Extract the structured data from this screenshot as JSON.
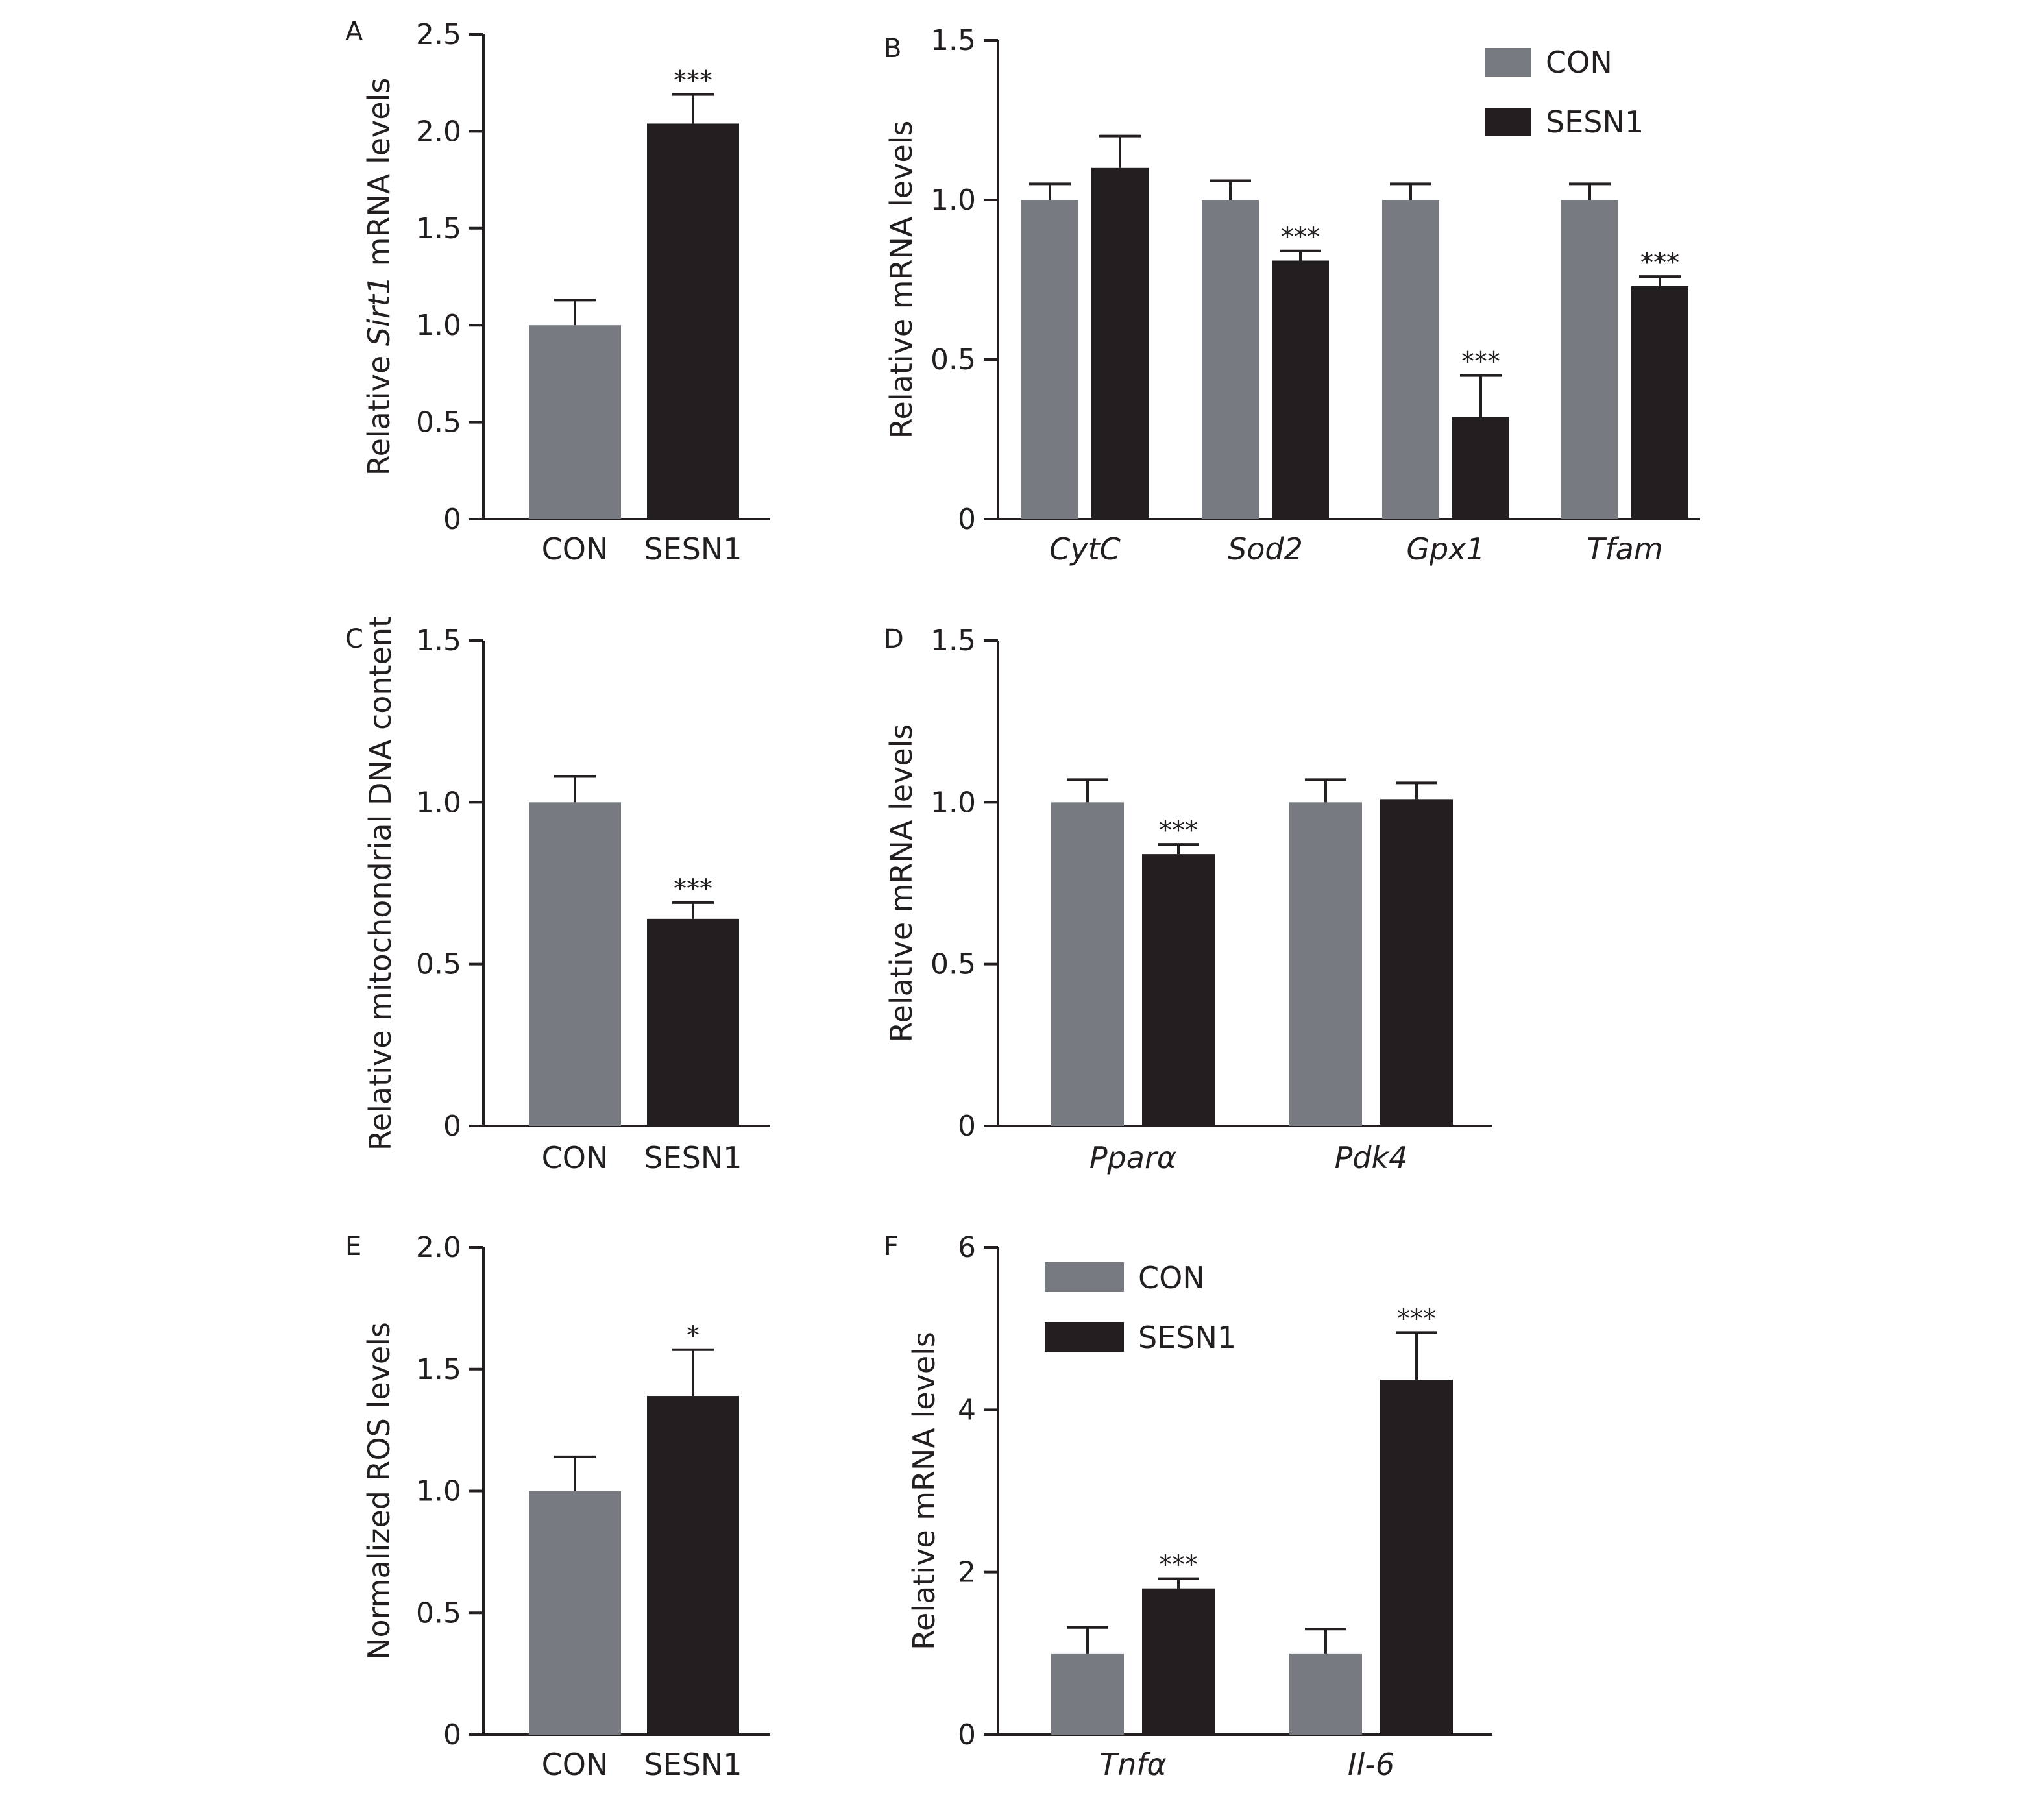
{
  "colors": {
    "con": "#777a80",
    "sesn1": "#231f20",
    "axis": "#231f20"
  },
  "chart_data": [
    {
      "panel": "A",
      "type": "bar",
      "ylabel_parts": [
        {
          "text": "Relative ",
          "italic": false
        },
        {
          "text": "Sirt1",
          "italic": true
        },
        {
          "text": " mRNA levels",
          "italic": false
        }
      ],
      "xlabel": "",
      "ylim": [
        0,
        2.5
      ],
      "yticks": [
        "0",
        "0.5",
        "1.0",
        "1.5",
        "2.0",
        "2.5"
      ],
      "yticks_values": [
        0,
        0.5,
        1.0,
        1.5,
        2.0,
        2.5
      ],
      "categories": [
        "CON",
        "SESN1"
      ],
      "categories_italic": false,
      "series": [
        {
          "name": "",
          "values": [
            1.0,
            2.04
          ],
          "errors": [
            0.13,
            0.15
          ],
          "colors": [
            "con",
            "sesn1"
          ],
          "sig": [
            "",
            "***"
          ]
        }
      ],
      "legend": null
    },
    {
      "panel": "B",
      "type": "bar",
      "ylabel_parts": [
        {
          "text": "Relative mRNA levels",
          "italic": false
        }
      ],
      "xlabel": "",
      "ylim": [
        0,
        1.5
      ],
      "yticks": [
        "0",
        "0.5",
        "1.0",
        "1.5"
      ],
      "yticks_values": [
        0,
        0.5,
        1.0,
        1.5
      ],
      "categories": [
        "CytC",
        "Sod2",
        "Gpx1",
        "Tfam"
      ],
      "categories_italic": true,
      "series": [
        {
          "name": "CON",
          "values": [
            1.0,
            1.0,
            1.0,
            1.0
          ],
          "errors": [
            0.05,
            0.06,
            0.05,
            0.05
          ],
          "color": "con",
          "sig": [
            "",
            "",
            "",
            ""
          ]
        },
        {
          "name": "SESN1",
          "values": [
            1.1,
            0.81,
            0.32,
            0.73
          ],
          "errors": [
            0.1,
            0.03,
            0.13,
            0.03
          ],
          "color": "sesn1",
          "sig": [
            "",
            "***",
            "***",
            "***"
          ]
        }
      ],
      "legend": "top-right"
    },
    {
      "panel": "C",
      "type": "bar",
      "ylabel_parts": [
        {
          "text": "Relative mitochondrial  DNA content",
          "italic": false
        }
      ],
      "xlabel": "",
      "ylim": [
        0,
        1.5
      ],
      "yticks": [
        "0",
        "0.5",
        "1.0",
        "1.5"
      ],
      "yticks_values": [
        0,
        0.5,
        1.0,
        1.5
      ],
      "categories": [
        "CON",
        "SESN1"
      ],
      "categories_italic": false,
      "series": [
        {
          "name": "",
          "values": [
            1.0,
            0.64
          ],
          "errors": [
            0.08,
            0.05
          ],
          "colors": [
            "con",
            "sesn1"
          ],
          "sig": [
            "",
            "***"
          ]
        }
      ],
      "legend": null
    },
    {
      "panel": "D",
      "type": "bar",
      "ylabel_parts": [
        {
          "text": "Relative mRNA levels",
          "italic": false
        }
      ],
      "xlabel": "",
      "ylim": [
        0,
        1.5
      ],
      "yticks": [
        "0",
        "0.5",
        "1.0",
        "1.5"
      ],
      "yticks_values": [
        0,
        0.5,
        1.0,
        1.5
      ],
      "categories": [
        "Pparα",
        "Pdk4"
      ],
      "categories_italic": true,
      "series": [
        {
          "name": "CON",
          "values": [
            1.0,
            1.0
          ],
          "errors": [
            0.07,
            0.07
          ],
          "color": "con",
          "sig": [
            "",
            ""
          ]
        },
        {
          "name": "SESN1",
          "values": [
            0.84,
            1.01
          ],
          "errors": [
            0.03,
            0.05
          ],
          "color": "sesn1",
          "sig": [
            "***",
            ""
          ]
        }
      ],
      "legend": null
    },
    {
      "panel": "E",
      "type": "bar",
      "ylabel_parts": [
        {
          "text": "Normalized ROS levels",
          "italic": false
        }
      ],
      "xlabel": "",
      "ylim": [
        0,
        2.0
      ],
      "yticks": [
        "0",
        "0.5",
        "1.0",
        "1.5",
        "2.0"
      ],
      "yticks_values": [
        0,
        0.5,
        1.0,
        1.5,
        2.0
      ],
      "categories": [
        "CON",
        "SESN1"
      ],
      "categories_italic": false,
      "series": [
        {
          "name": "",
          "values": [
            1.0,
            1.39
          ],
          "errors": [
            0.14,
            0.19
          ],
          "colors": [
            "con",
            "sesn1"
          ],
          "sig": [
            "",
            "*"
          ]
        }
      ],
      "legend": null
    },
    {
      "panel": "F",
      "type": "bar",
      "ylabel_parts": [
        {
          "text": "Relative mRNA levels",
          "italic": false
        }
      ],
      "xlabel": "",
      "ylim": [
        0,
        6
      ],
      "yticks": [
        "0",
        "2",
        "4",
        "6"
      ],
      "yticks_values": [
        0,
        2,
        4,
        6
      ],
      "categories": [
        "Tnfα",
        "Il-6"
      ],
      "categories_italic": true,
      "series": [
        {
          "name": "CON",
          "values": [
            1.0,
            1.0
          ],
          "errors": [
            0.32,
            0.3
          ],
          "color": "con",
          "sig": [
            "",
            ""
          ]
        },
        {
          "name": "SESN1",
          "values": [
            1.8,
            4.37
          ],
          "errors": [
            0.12,
            0.58
          ],
          "color": "sesn1",
          "sig": [
            "***",
            "***"
          ]
        }
      ],
      "legend": "top-left"
    }
  ]
}
